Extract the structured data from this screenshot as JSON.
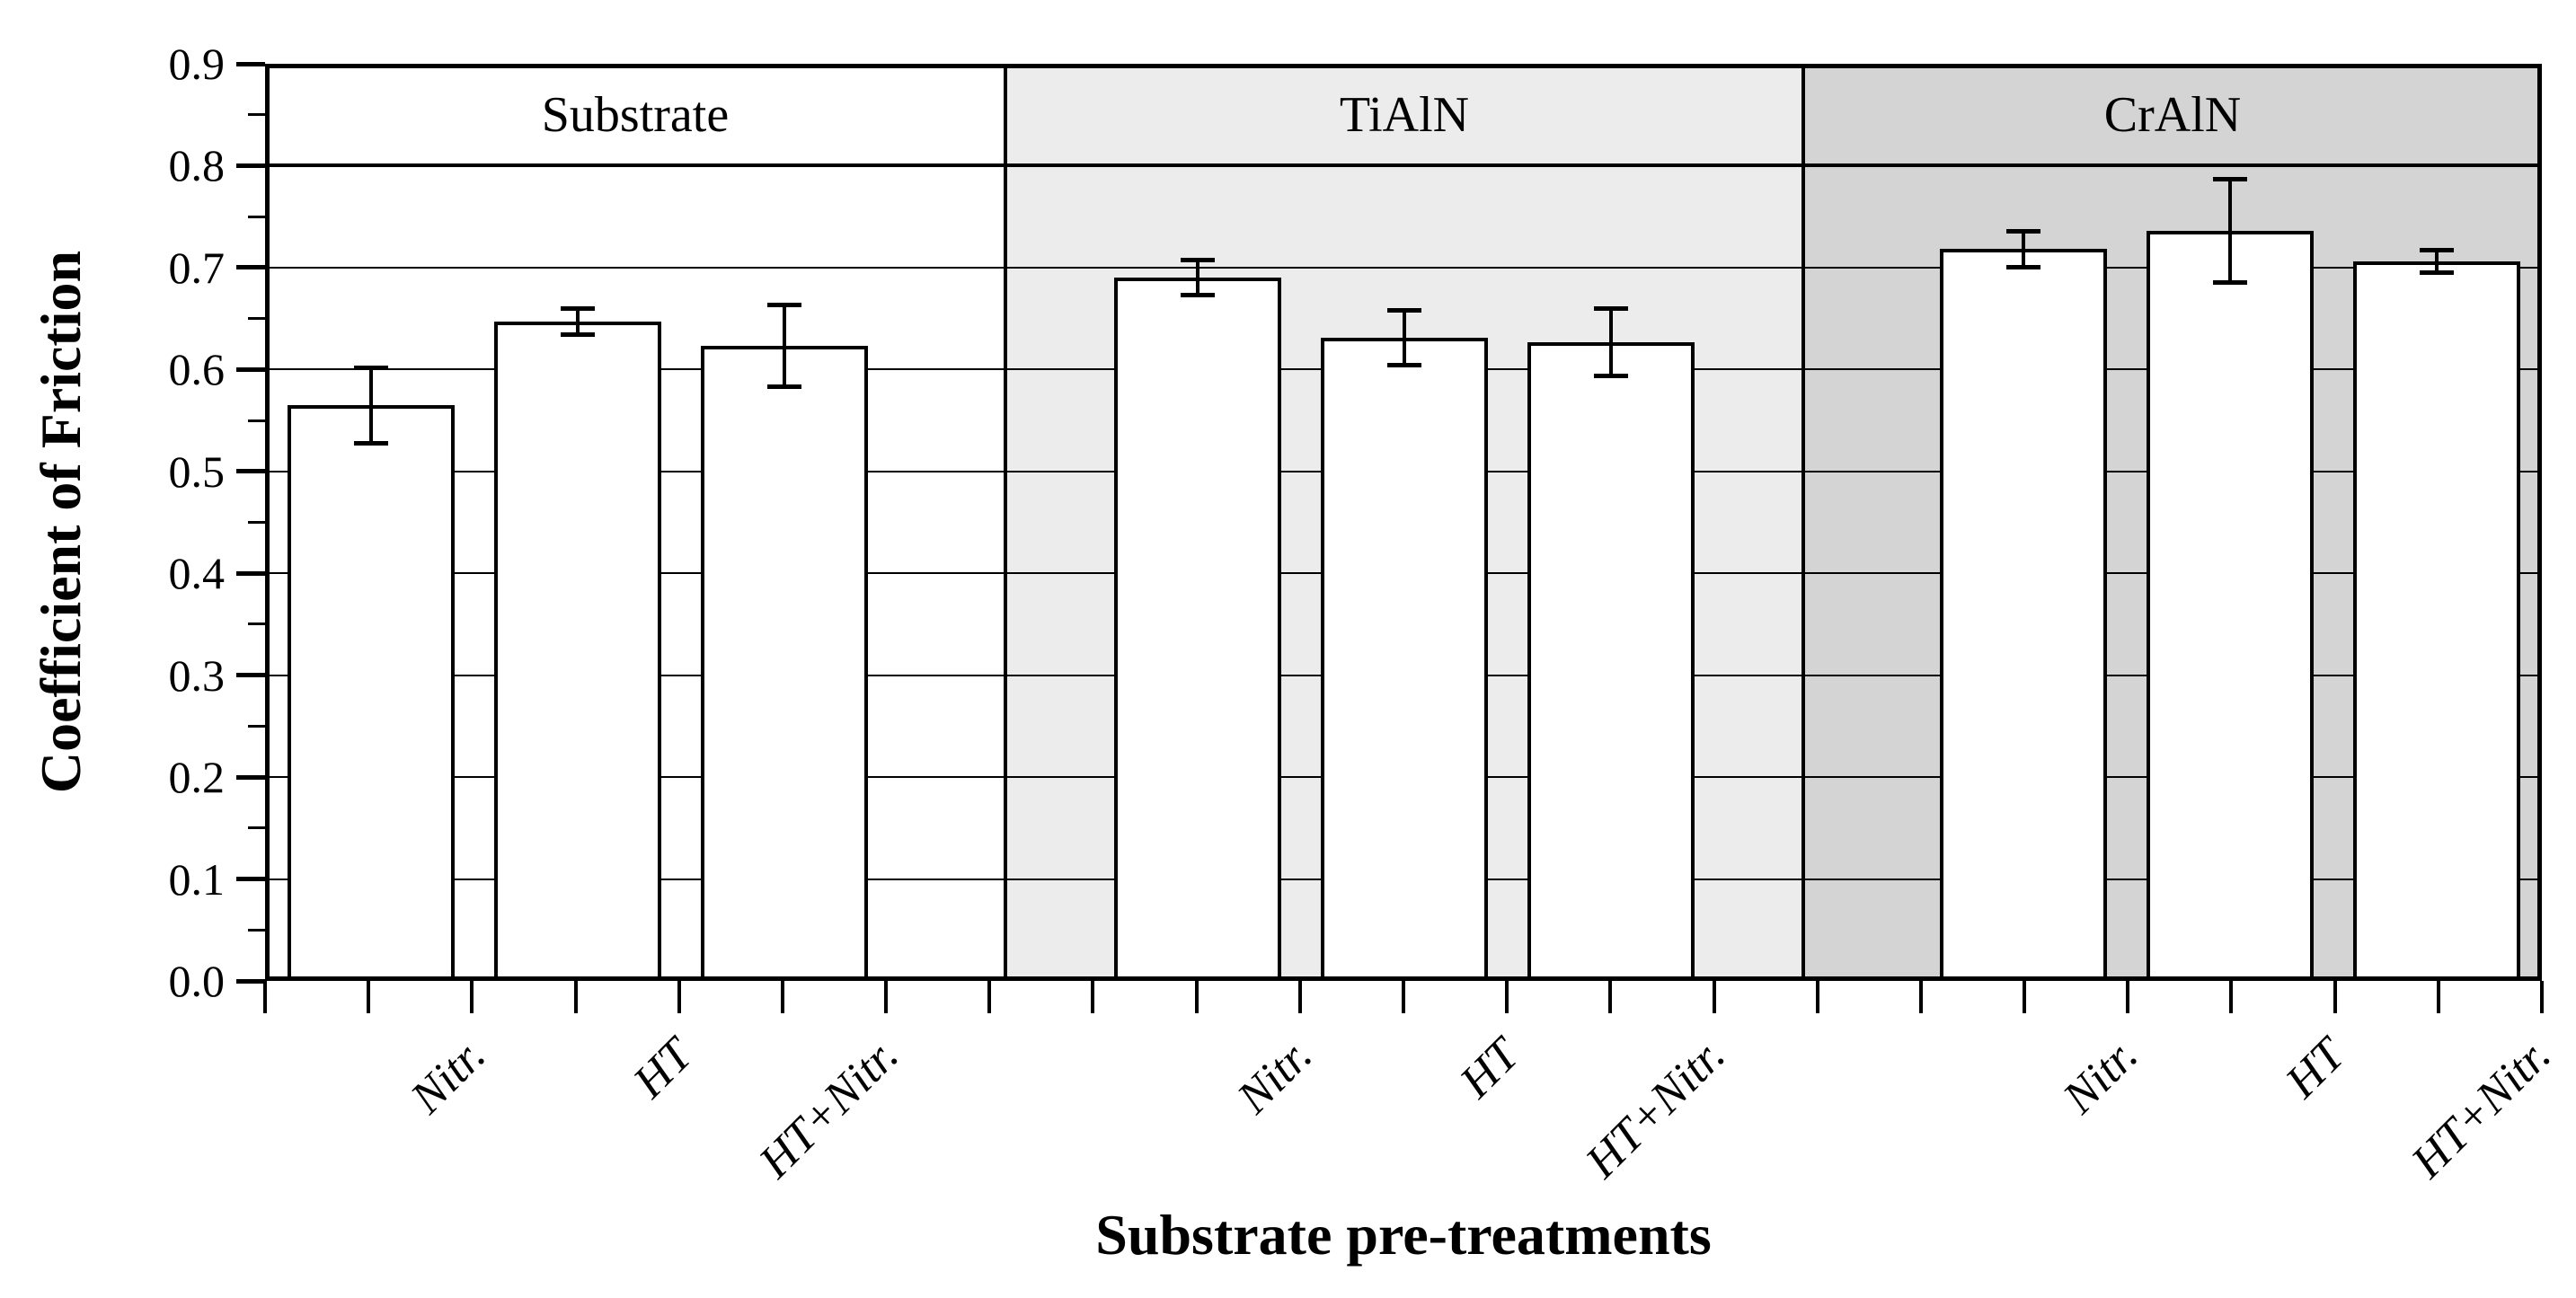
{
  "chart_data": {
    "type": "bar",
    "title": "",
    "xlabel": "Substrate pre-treatments",
    "ylabel": "Coefficient of Friction",
    "ylim": [
      0.0,
      0.9
    ],
    "ytick_step": 0.1,
    "ytick_minor_step": 0.05,
    "ytick_labels": [
      "0.0",
      "0.1",
      "0.2",
      "0.3",
      "0.4",
      "0.5",
      "0.6",
      "0.7",
      "0.8",
      "0.9"
    ],
    "grid": "horizontal-major",
    "legend": "none",
    "categories": [
      "Nitr.",
      "HT",
      "HT+Nitr."
    ],
    "panels": [
      {
        "label": "Substrate",
        "bg_color": "#ffffff",
        "series": [
          {
            "category": "Nitr.",
            "value": 0.565,
            "error": 0.037
          },
          {
            "category": "HT",
            "value": 0.647,
            "error": 0.013
          },
          {
            "category": "HT+Nitr.",
            "value": 0.623,
            "error": 0.04
          }
        ]
      },
      {
        "label": "TiAlN",
        "bg_color": "#ececec",
        "series": [
          {
            "category": "Nitr.",
            "value": 0.69,
            "error": 0.017
          },
          {
            "category": "HT",
            "value": 0.631,
            "error": 0.027
          },
          {
            "category": "HT+Nitr.",
            "value": 0.627,
            "error": 0.033
          }
        ]
      },
      {
        "label": "CrAlN",
        "bg_color": "#d4d4d4",
        "series": [
          {
            "category": "Nitr.",
            "value": 0.718,
            "error": 0.018
          },
          {
            "category": "HT",
            "value": 0.736,
            "error": 0.051
          },
          {
            "category": "HT+Nitr.",
            "value": 0.706,
            "error": 0.011
          }
        ]
      }
    ],
    "bar_fill": "#ffffff",
    "bar_border": "#000000",
    "axis_color": "#000000"
  }
}
